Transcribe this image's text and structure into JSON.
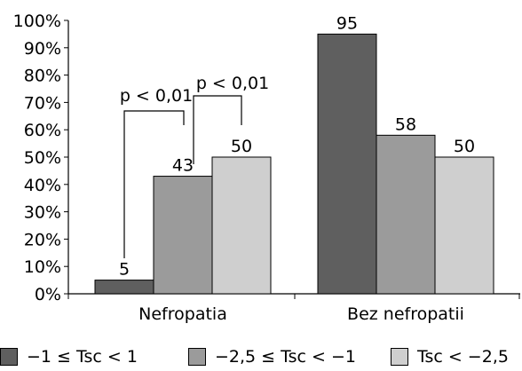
{
  "chart_data": {
    "type": "bar",
    "categories": [
      "Nefropatia",
      "Bez nefropatii"
    ],
    "series": [
      {
        "name": "−1 ≤ Tsc < 1",
        "values": [
          5,
          95
        ],
        "color": "#5f5f5f"
      },
      {
        "name": "−2,5 ≤ Tsc < −1",
        "values": [
          43,
          58
        ],
        "color": "#9b9b9b"
      },
      {
        "name": "Tsc < −2,5",
        "values": [
          50,
          50
        ],
        "color": "#cfcfcf"
      }
    ],
    "ylim": [
      0,
      100
    ],
    "yticks": [
      "0%",
      "10%",
      "20%",
      "30%",
      "40%",
      "50%",
      "60%",
      "70%",
      "80%",
      "90%",
      "100%"
    ],
    "data_labels": [
      [
        "5",
        "95"
      ],
      [
        "43",
        "58"
      ],
      [
        "50",
        "50"
      ]
    ],
    "annotations": [
      {
        "text": "p < 0,01",
        "from_series": 0,
        "to_series": 2,
        "category": 0
      },
      {
        "text": "p < 0,01",
        "from_series": 1,
        "to_series": 2,
        "category": 0
      }
    ],
    "grid": false,
    "legend": "bottom"
  }
}
